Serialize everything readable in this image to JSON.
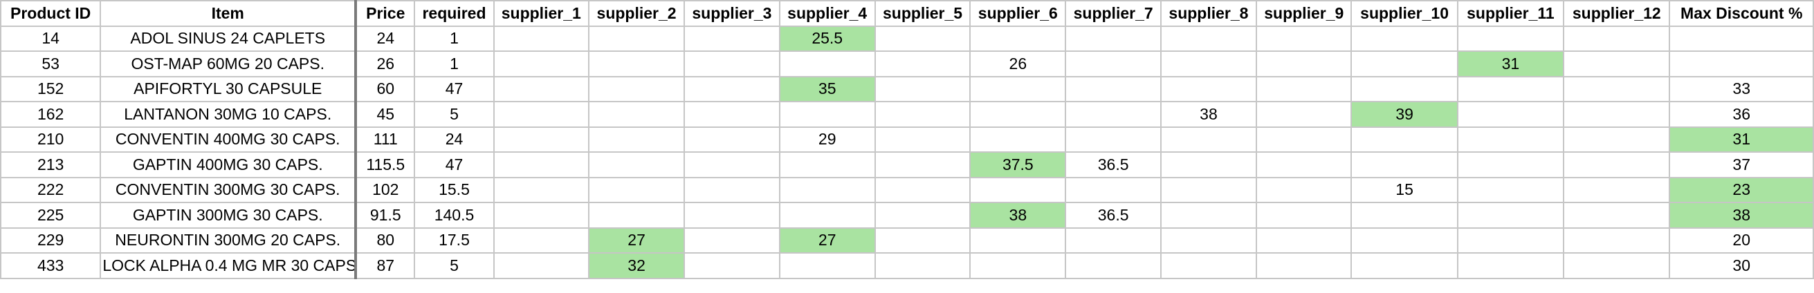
{
  "headers": [
    "Product ID",
    "Item",
    "Price",
    "required",
    "supplier_1",
    "supplier_2",
    "supplier_3",
    "supplier_4",
    "supplier_5",
    "supplier_6",
    "supplier_7",
    "supplier_8",
    "supplier_9",
    "supplier_10",
    "supplier_11",
    "supplier_12",
    "Max Discount %"
  ],
  "rows": [
    [
      "14",
      "ADOL SINUS 24 CAPLETS",
      "24",
      "1",
      "",
      "",
      "",
      "25.5",
      "",
      "",
      "",
      "",
      "",
      "",
      "",
      "",
      ""
    ],
    [
      "53",
      "OST-MAP 60MG 20 CAPS.",
      "26",
      "1",
      "",
      "",
      "",
      "",
      "",
      "26",
      "",
      "",
      "",
      "",
      "31",
      "",
      ""
    ],
    [
      "152",
      "APIFORTYL 30 CAPSULE",
      "60",
      "47",
      "",
      "",
      "",
      "35",
      "",
      "",
      "",
      "",
      "",
      "",
      "",
      "",
      "33"
    ],
    [
      "162",
      "LANTANON 30MG 10 CAPS.",
      "45",
      "5",
      "",
      "",
      "",
      "",
      "",
      "",
      "",
      "38",
      "",
      "39",
      "",
      "",
      "36"
    ],
    [
      "210",
      "CONVENTIN 400MG 30 CAPS.",
      "111",
      "24",
      "",
      "",
      "",
      "29",
      "",
      "",
      "",
      "",
      "",
      "",
      "",
      "",
      "31"
    ],
    [
      "213",
      "GAPTIN 400MG 30 CAPS.",
      "115.5",
      "47",
      "",
      "",
      "",
      "",
      "",
      "37.5",
      "36.5",
      "",
      "",
      "",
      "",
      "",
      "37"
    ],
    [
      "222",
      "CONVENTIN 300MG 30 CAPS.",
      "102",
      "15.5",
      "",
      "",
      "",
      "",
      "",
      "",
      "",
      "",
      "",
      "15",
      "",
      "",
      "23"
    ],
    [
      "225",
      "GAPTIN 300MG 30 CAPS.",
      "91.5",
      "140.5",
      "",
      "",
      "",
      "",
      "",
      "38",
      "36.5",
      "",
      "",
      "",
      "",
      "",
      "38"
    ],
    [
      "229",
      "NEURONTIN 300MG 20 CAPS.",
      "80",
      "17.5",
      "",
      "27",
      "",
      "27",
      "",
      "",
      "",
      "",
      "",
      "",
      "",
      "",
      "20"
    ],
    [
      "433",
      "LOCK ALPHA 0.4 MG MR 30 CAPS",
      "87",
      "5",
      "",
      "32",
      "",
      "",
      "",
      "",
      "",
      "",
      "",
      "",
      "",
      "",
      "30"
    ]
  ],
  "highlighted_cells": [
    [
      0,
      7
    ],
    [
      1,
      14
    ],
    [
      2,
      7
    ],
    [
      3,
      13
    ],
    [
      4,
      16
    ],
    [
      5,
      9
    ],
    [
      6,
      16
    ],
    [
      7,
      9
    ],
    [
      7,
      16
    ],
    [
      8,
      5
    ],
    [
      8,
      7
    ],
    [
      9,
      5
    ]
  ],
  "colors": {
    "highlight": "#a9e3a1",
    "grid": "#c6c6c6",
    "text": "#000000",
    "background": "#ffffff"
  }
}
